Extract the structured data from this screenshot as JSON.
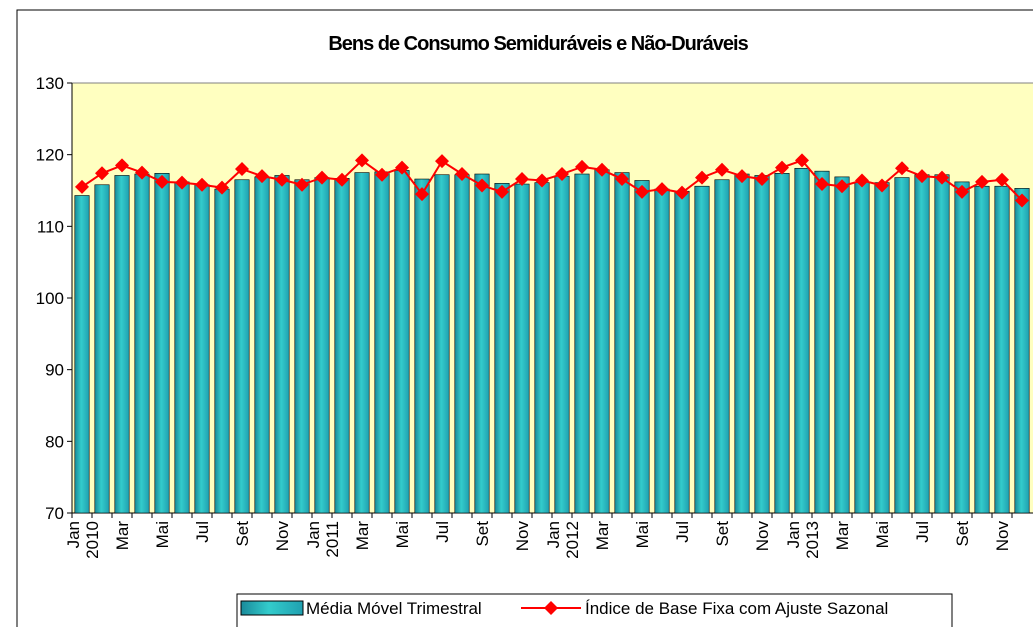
{
  "chart_data": {
    "type": "bar-line",
    "title": "Bens de Consumo Semiduráveis e Não-Duráveis",
    "categories": [
      "Jan 2010",
      null,
      "Mar",
      null,
      "Mai",
      null,
      "Jul",
      null,
      "Set",
      null,
      "Nov",
      null,
      "Jan 2011",
      null,
      "Mar",
      null,
      "Mai",
      null,
      "Jul",
      null,
      "Set",
      null,
      "Nov",
      null,
      "Jan 2012",
      null,
      "Mar",
      null,
      "Mai",
      null,
      "Jul",
      null,
      "Set",
      null,
      "Nov",
      null,
      "Jan 2013",
      null,
      "Mar",
      null,
      "Mai",
      null,
      "Jul",
      null,
      "Set",
      null,
      "Nov",
      null
    ],
    "series": [
      {
        "name": "Média Móvel Trimestral",
        "kind": "bar",
        "color": "#33cccc",
        "values": [
          114.3,
          115.8,
          117.1,
          117.3,
          117.4,
          116.2,
          115.8,
          115.2,
          116.5,
          116.9,
          117.1,
          116.5,
          116.8,
          116.7,
          117.5,
          117.6,
          117.8,
          116.6,
          117.2,
          117.2,
          117.3,
          116.0,
          115.9,
          116.1,
          117.0,
          117.3,
          117.9,
          117.5,
          116.4,
          115.2,
          114.9,
          115.6,
          116.5,
          117.3,
          117.1,
          117.4,
          118.1,
          117.7,
          116.9,
          116.2,
          116.1,
          116.8,
          117.2,
          117.2,
          116.2,
          115.6,
          115.6,
          115.3
        ]
      },
      {
        "name": "Índice de Base Fixa com Ajuste Sazonal",
        "kind": "line",
        "color": "#ff0000",
        "values": [
          115.5,
          117.4,
          118.5,
          117.5,
          116.2,
          116.1,
          115.8,
          115.4,
          118.0,
          117.0,
          116.5,
          115.8,
          116.8,
          116.5,
          119.2,
          117.2,
          118.2,
          114.5,
          119.1,
          117.3,
          115.7,
          114.8,
          116.6,
          116.4,
          117.3,
          118.3,
          117.9,
          116.6,
          114.8,
          115.2,
          114.7,
          116.8,
          117.9,
          117.0,
          116.6,
          118.2,
          119.2,
          115.9,
          115.6,
          116.4,
          115.7,
          118.1,
          117.0,
          116.8,
          114.8,
          116.2,
          116.5,
          113.6
        ]
      }
    ],
    "ylim": [
      70,
      130
    ],
    "yticks": [
      70,
      80,
      90,
      100,
      110,
      120,
      130
    ],
    "grid": false,
    "legend": "bottom",
    "plot_background": "#ffffc0"
  }
}
